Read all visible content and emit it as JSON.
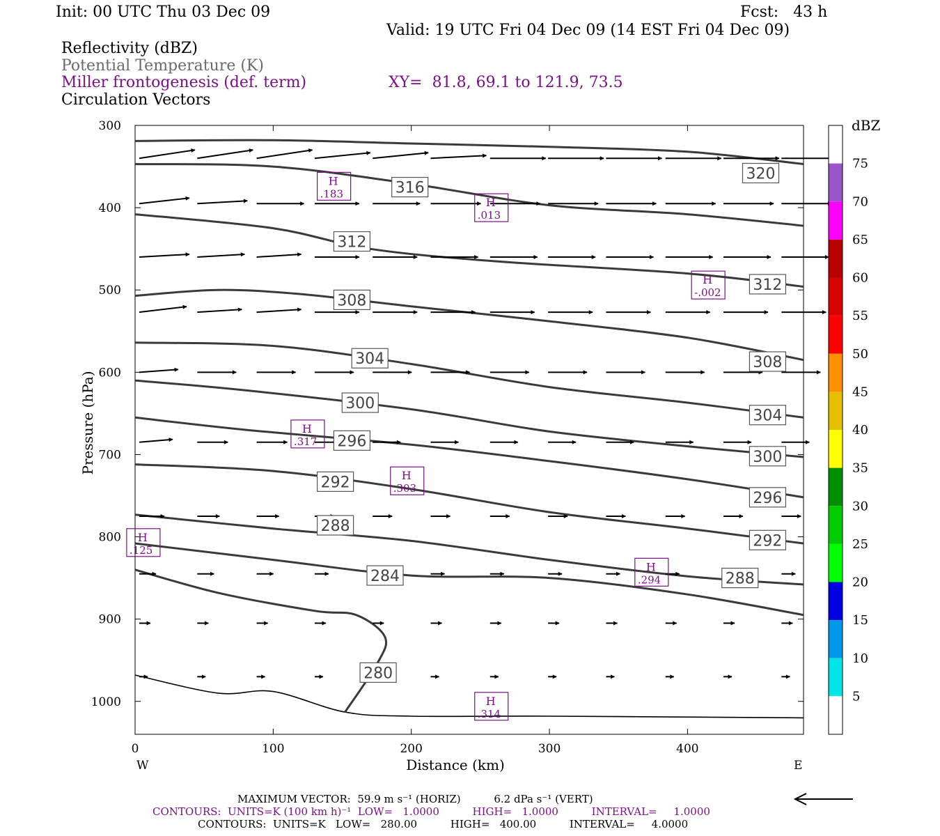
{
  "header": {
    "init": "Init: 00 UTC Thu 03 Dec 09",
    "fcst": "Fcst:   43 h",
    "valid": "Valid: 19 UTC Fri 04 Dec 09 (14 EST Fri 04 Dec 09)",
    "field1": "Reflectivity (dBZ)",
    "field2": "Potential Temperature (K)",
    "field3": "Miller frontogenesis (def. term)",
    "xy": "XY=  81.8, 69.1 to 121.9, 73.5",
    "field4": "Circulation Vectors"
  },
  "colors": {
    "frontogenesis": "#7a0f86",
    "theta": "#3a3a3a"
  },
  "chart_data": {
    "type": "contour-cross-section",
    "xlabel": "Distance (km)",
    "ylabel": "Pressure (hPa)",
    "xlim": [
      0,
      484
    ],
    "ylim": [
      1040,
      300
    ],
    "y_scale": "linear",
    "x_ticks": [
      0,
      100,
      200,
      300,
      400
    ],
    "y_ticks": [
      300,
      400,
      500,
      600,
      700,
      800,
      900,
      1000
    ],
    "x_end_labels": {
      "left": "W",
      "right": "E"
    },
    "theta_contours": [
      {
        "level": "320",
        "points": [
          [
            0,
            319
          ],
          [
            100,
            318
          ],
          [
            200,
            322
          ],
          [
            300,
            326
          ],
          [
            400,
            332
          ],
          [
            484,
            347
          ]
        ],
        "labels": [
          [
            453,
            358
          ]
        ]
      },
      {
        "level": "316",
        "points": [
          [
            0,
            347
          ],
          [
            100,
            350
          ],
          [
            200,
            371
          ],
          [
            300,
            397
          ],
          [
            400,
            408
          ],
          [
            484,
            422
          ]
        ],
        "labels": [
          [
            199,
            375
          ]
        ]
      },
      {
        "level": "312",
        "points": [
          [
            0,
            408
          ],
          [
            100,
            425
          ],
          [
            170,
            450
          ],
          [
            260,
            465
          ],
          [
            400,
            480
          ],
          [
            484,
            496
          ]
        ],
        "labels": [
          [
            157,
            441
          ]
        ],
        "labels2": [
          [
            458,
            493
          ]
        ]
      },
      {
        "level": "308",
        "points": [
          [
            0,
            507
          ],
          [
            60,
            500
          ],
          [
            120,
            505
          ],
          [
            200,
            520
          ],
          [
            300,
            538
          ],
          [
            400,
            558
          ],
          [
            484,
            585
          ]
        ],
        "labels": [
          [
            157,
            512
          ]
        ],
        "labels2": [
          [
            458,
            587
          ]
        ]
      },
      {
        "level": "304",
        "points": [
          [
            0,
            564
          ],
          [
            100,
            568
          ],
          [
            200,
            590
          ],
          [
            300,
            618
          ],
          [
            400,
            637
          ],
          [
            484,
            655
          ]
        ],
        "labels": [
          [
            170,
            583
          ]
        ],
        "labels2": [
          [
            458,
            652
          ]
        ]
      },
      {
        "level": "300",
        "points": [
          [
            0,
            610
          ],
          [
            80,
            622
          ],
          [
            200,
            645
          ],
          [
            300,
            672
          ],
          [
            400,
            690
          ],
          [
            484,
            703
          ]
        ],
        "labels": [
          [
            163,
            637
          ]
        ],
        "labels2": [
          [
            458,
            702
          ]
        ]
      },
      {
        "level": "296",
        "points": [
          [
            0,
            655
          ],
          [
            80,
            670
          ],
          [
            200,
            688
          ],
          [
            300,
            708
          ],
          [
            400,
            730
          ],
          [
            484,
            752
          ]
        ],
        "labels": [
          [
            157,
            683
          ]
        ],
        "labels2": [
          [
            458,
            752
          ]
        ]
      },
      {
        "level": "292",
        "points": [
          [
            0,
            712
          ],
          [
            100,
            720
          ],
          [
            200,
            742
          ],
          [
            300,
            770
          ],
          [
            400,
            790
          ],
          [
            484,
            808
          ]
        ],
        "labels": [
          [
            145,
            733
          ]
        ],
        "labels2": [
          [
            458,
            804
          ]
        ]
      },
      {
        "level": "288",
        "points": [
          [
            0,
            773
          ],
          [
            100,
            790
          ],
          [
            200,
            805
          ],
          [
            300,
            828
          ],
          [
            400,
            848
          ],
          [
            484,
            858
          ]
        ],
        "labels": [
          [
            145,
            786
          ]
        ],
        "labels2": [
          [
            438,
            850
          ]
        ]
      },
      {
        "level": "284",
        "points": [
          [
            0,
            808
          ],
          [
            100,
            828
          ],
          [
            200,
            847
          ],
          [
            300,
            850
          ],
          [
            400,
            870
          ],
          [
            484,
            895
          ]
        ],
        "labels": [
          [
            181,
            847
          ]
        ]
      },
      {
        "level": "280",
        "points": [
          [
            0,
            840
          ],
          [
            60,
            868
          ],
          [
            130,
            890
          ],
          [
            160,
            895
          ],
          [
            181,
            922
          ],
          [
            175,
            955
          ],
          [
            152,
            1013
          ]
        ],
        "labels": [
          [
            176,
            965
          ]
        ]
      }
    ],
    "boundary_line": {
      "points": [
        [
          0,
          968
        ],
        [
          60,
          990
        ],
        [
          100,
          988
        ],
        [
          152,
          1013
        ],
        [
          200,
          1018
        ],
        [
          300,
          1018
        ],
        [
          484,
          1020
        ]
      ]
    },
    "frontogenesis_maxima": [
      {
        "label": "H",
        "value": ".183",
        "x": 144,
        "y": 374
      },
      {
        "label": "H",
        "value": ".013",
        "x": 258,
        "y": 400
      },
      {
        "label": "H",
        "value": "-.002",
        "x": 415,
        "y": 494
      },
      {
        "label": "H",
        "value": ".317",
        "x": 125,
        "y": 675
      },
      {
        "label": "H",
        "value": ".303",
        "x": 197,
        "y": 732
      },
      {
        "label": "H",
        "value": ".125",
        "x": 6,
        "y": 807
      },
      {
        "label": "H",
        "value": ".294",
        "x": 374,
        "y": 843
      },
      {
        "label": "H",
        "value": ".314",
        "x": 258,
        "y": 1006
      }
    ],
    "vectors": {
      "x_positions": [
        0,
        42,
        85,
        127,
        169,
        211,
        254,
        296,
        338,
        381,
        423,
        465
      ],
      "rows": [
        {
          "p": 340,
          "u": [
            1.0,
            1.0,
            1.0,
            1.0,
            1.0,
            1.0,
            1.0,
            1.0,
            1.0,
            1.0,
            1.0,
            1.0
          ],
          "w": [
            -0.15,
            -0.15,
            -0.15,
            -0.1,
            -0.1,
            -0.05,
            0,
            0,
            0,
            0,
            0,
            0
          ]
        },
        {
          "p": 395,
          "u": [
            0.9,
            0.9,
            0.85,
            0.8,
            0.85,
            0.9,
            0.9,
            0.9,
            0.9,
            0.9,
            0.9,
            0.9
          ],
          "w": [
            -0.1,
            -0.05,
            0,
            0,
            0,
            0,
            0,
            0,
            0,
            0,
            0,
            0
          ]
        },
        {
          "p": 460,
          "u": [
            0.9,
            0.85,
            0.8,
            0.8,
            0.8,
            0.85,
            0.85,
            0.85,
            0.85,
            0.85,
            0.85,
            0.85
          ],
          "w": [
            -0.05,
            -0.05,
            -0.05,
            0,
            0,
            0,
            0,
            0,
            0,
            0,
            0,
            0
          ]
        },
        {
          "p": 527,
          "u": [
            0.85,
            0.8,
            0.8,
            0.8,
            0.8,
            0.8,
            0.8,
            0.8,
            0.8,
            0.8,
            0.8,
            0.8
          ],
          "w": [
            -0.1,
            -0.05,
            -0.05,
            0,
            0,
            0,
            0,
            0,
            0,
            0,
            0,
            0
          ]
        },
        {
          "p": 600,
          "u": [
            0.7,
            0.7,
            0.7,
            0.7,
            0.7,
            0.7,
            0.7,
            0.7,
            0.7,
            0.7,
            0.7,
            0.7
          ],
          "w": [
            -0.05,
            0,
            0,
            0,
            0,
            0,
            0,
            0,
            0,
            0,
            0,
            0
          ]
        },
        {
          "p": 685,
          "u": [
            0.6,
            0.55,
            0.55,
            0.5,
            0.5,
            0.5,
            0.5,
            0.5,
            0.5,
            0.5,
            0.5,
            0.5
          ],
          "w": [
            -0.05,
            0,
            0,
            0,
            0,
            0,
            0,
            0,
            0,
            0,
            0,
            0
          ]
        },
        {
          "p": 775,
          "u": [
            0.45,
            0.4,
            0.4,
            0.35,
            0.35,
            0.35,
            0.35,
            0.35,
            0.35,
            0.35,
            0.35,
            0.35
          ],
          "w": [
            0,
            0,
            0,
            0,
            0,
            0,
            0,
            0,
            0,
            0,
            0,
            0
          ]
        },
        {
          "p": 845,
          "u": [
            0.3,
            0.3,
            0.3,
            0.25,
            0.25,
            0.25,
            0.25,
            0.25,
            0.25,
            0.25,
            0.25,
            0.25
          ],
          "w": [
            0,
            0,
            0,
            0,
            0,
            0,
            0,
            0,
            0,
            0,
            0,
            0
          ]
        },
        {
          "p": 905,
          "u": [
            0.2,
            0.2,
            0.2,
            0.2,
            0.2,
            0.2,
            0.2,
            0.2,
            0.2,
            0.2,
            0.2,
            0.2
          ],
          "w": [
            0,
            0,
            0,
            0,
            0,
            0,
            0,
            0,
            0,
            0,
            0,
            0
          ]
        },
        {
          "p": 970,
          "u": [
            0.15,
            0.15,
            0.15,
            0.15,
            0.15,
            0.15,
            0.15,
            0.15,
            0.15,
            0.15,
            0.15,
            0.15
          ],
          "w": [
            0,
            0,
            0,
            0,
            0,
            0,
            0,
            0,
            0,
            0,
            0,
            0
          ]
        }
      ]
    },
    "colorbar": {
      "title": "dBZ",
      "levels": [
        "5",
        "10",
        "15",
        "20",
        "25",
        "30",
        "35",
        "40",
        "45",
        "50",
        "55",
        "60",
        "65",
        "70",
        "75"
      ],
      "colors": [
        "#ffffff",
        "#00e5e5",
        "#0096ea",
        "#0000e0",
        "#00ff00",
        "#00cc00",
        "#008f00",
        "#ffff00",
        "#e6bf00",
        "#ff8f00",
        "#ff0000",
        "#d80000",
        "#b80000",
        "#ff00ff",
        "#9955c9",
        "#ffffff"
      ]
    }
  },
  "footer": {
    "max_vector": "MAXIMUM VECTOR:  59.9 m s⁻¹ (HORIZ)          6.2 dPa s⁻¹ (VERT)",
    "contours1": "CONTOURS:  UNITS=K (100 km h)⁻¹  LOW=   1.0000          HIGH=   1.0000          INTERVAL=     1.0000",
    "contours2": "CONTOURS:  UNITS=K   LOW=   280.00          HIGH=   400.00          INTERVAL=     4.0000"
  }
}
